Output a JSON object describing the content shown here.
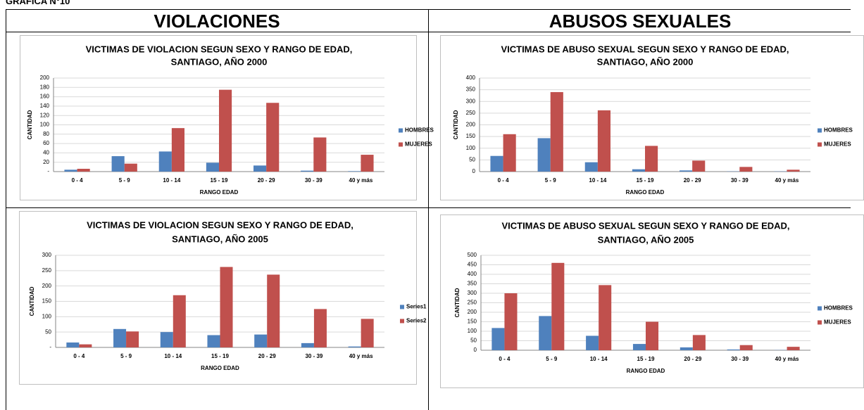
{
  "header": {
    "title": "GRAFICA N°10"
  },
  "table": {
    "headers": [
      "VIOLACIONES",
      "ABUSOS SEXUALES"
    ]
  },
  "chart_data": [
    {
      "type": "bar",
      "title": [
        "VICTIMAS DE VIOLACION  SEGUN SEXO Y RANGO DE EDAD,",
        "SANTIAGO, AÑO 2000"
      ],
      "y_label": "CANTIDAD",
      "x_label": "RANGO EDAD",
      "categories": [
        "0 - 4",
        "5 - 9",
        "10 - 14",
        "15 - 19",
        "20 - 29",
        "30 - 39",
        "40 y más"
      ],
      "series": [
        {
          "name": "HOMBRES",
          "color": "#4f81bd",
          "values": [
            4,
            33,
            43,
            19,
            13,
            2,
            1
          ]
        },
        {
          "name": "MUJERES",
          "color": "#c0504d",
          "values": [
            6,
            17,
            93,
            175,
            147,
            73,
            36
          ]
        }
      ],
      "ylim": [
        0,
        200
      ],
      "yticks": [
        {
          "value": 0,
          "label": "-"
        },
        20,
        40,
        60,
        80,
        100,
        120,
        140,
        160,
        180,
        200
      ],
      "grid": true,
      "legend": "right"
    },
    {
      "type": "bar",
      "title": [
        "VICTIMAS DE ABUSO SEXUAL  SEGUN SEXO Y RANGO DE EDAD,",
        "SANTIAGO, AÑO 2000"
      ],
      "y_label": "CANTIDAD",
      "x_label": "RANGO EDAD",
      "categories": [
        "0 - 4",
        "5 - 9",
        "10 - 14",
        "15 - 19",
        "20 - 29",
        "30 - 39",
        "40 y más"
      ],
      "series": [
        {
          "name": "HOMBRES",
          "color": "#4f81bd",
          "values": [
            67,
            143,
            40,
            10,
            5,
            1,
            1
          ]
        },
        {
          "name": "MUJERES",
          "color": "#c0504d",
          "values": [
            160,
            340,
            262,
            110,
            47,
            20,
            8
          ]
        }
      ],
      "ylim": [
        0,
        400
      ],
      "yticks": [
        0,
        50,
        100,
        150,
        200,
        250,
        300,
        350,
        400
      ],
      "grid": true,
      "legend": "right"
    },
    {
      "type": "bar",
      "title": [
        "VICTIMAS DE VIOLACION  SEGUN SEXO Y RANGO DE EDAD,",
        "SANTIAGO, AÑO 2005"
      ],
      "y_label": "CANTIDAD",
      "x_label": "RANGO EDAD",
      "categories": [
        "0 - 4",
        "5 - 9",
        "10 - 14",
        "15 - 19",
        "20 - 29",
        "30 - 39",
        "40 y más"
      ],
      "series": [
        {
          "name": "Series1",
          "color": "#4f81bd",
          "values": [
            16,
            60,
            50,
            40,
            42,
            14,
            3
          ]
        },
        {
          "name": "Series2",
          "color": "#c0504d",
          "values": [
            10,
            52,
            170,
            262,
            237,
            125,
            93
          ]
        }
      ],
      "ylim": [
        0,
        300
      ],
      "yticks": [
        {
          "value": 0,
          "label": "-"
        },
        50,
        100,
        150,
        200,
        250,
        300
      ],
      "grid": true,
      "legend": "right"
    },
    {
      "type": "bar",
      "title": [
        "VICTIMAS DE ABUSO SEXUAL  SEGUN SEXO Y RANGO DE EDAD,",
        "SANTIAGO, AÑO 2005"
      ],
      "y_label": "CANTIDAD",
      "x_label": "RANGO EDAD",
      "categories": [
        "0 - 4",
        "5 - 9",
        "10 - 14",
        "15 - 19",
        "20 - 29",
        "30 - 39",
        "40 y más"
      ],
      "series": [
        {
          "name": "HOMBRES",
          "color": "#4f81bd",
          "values": [
            117,
            180,
            76,
            33,
            15,
            4,
            1
          ]
        },
        {
          "name": "MUJERES",
          "color": "#c0504d",
          "values": [
            300,
            460,
            343,
            150,
            80,
            27,
            18
          ]
        }
      ],
      "ylim": [
        0,
        500
      ],
      "yticks": [
        0,
        50,
        100,
        150,
        200,
        250,
        300,
        350,
        400,
        450,
        500
      ],
      "grid": true,
      "legend": "right"
    }
  ]
}
